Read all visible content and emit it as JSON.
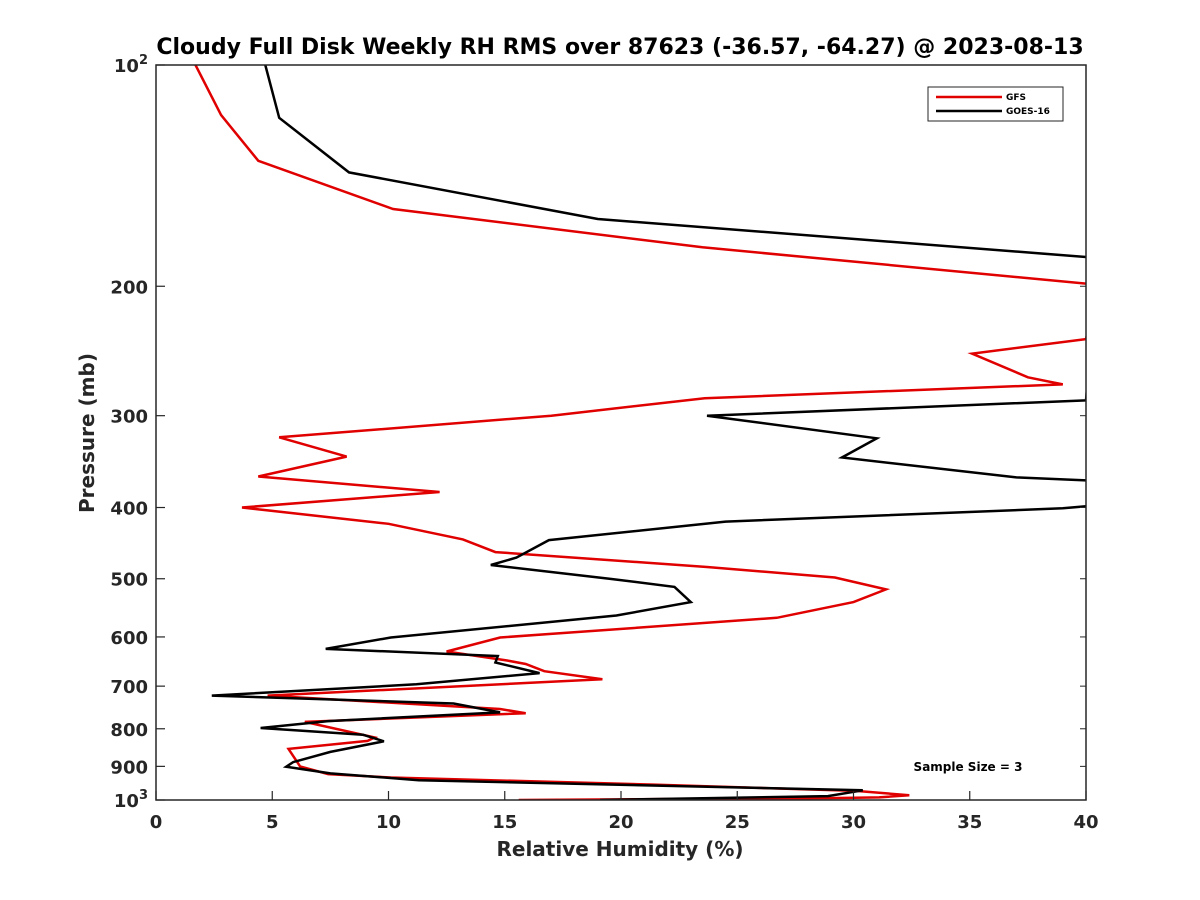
{
  "chart_data": {
    "type": "line",
    "title": "Cloudy Full Disk Weekly RH RMS over 87623 (-36.57, -64.27) @ 2023-08-13",
    "xlabel": "Relative Humidity (%)",
    "ylabel": "Pressure (mb)",
    "xlim": [
      0,
      40
    ],
    "ylim": [
      100,
      1000
    ],
    "yscale": "log",
    "y_reversed": true,
    "grid": false,
    "legend_position": "top-right",
    "x_ticks": [
      0,
      5,
      10,
      15,
      20,
      25,
      30,
      35,
      40
    ],
    "y_ticks": [
      {
        "value": 100,
        "base": "10",
        "exp": "2"
      },
      {
        "value": 200,
        "label": "200"
      },
      {
        "value": 300,
        "label": "300"
      },
      {
        "value": 400,
        "label": "400"
      },
      {
        "value": 500,
        "label": "500"
      },
      {
        "value": 600,
        "label": "600"
      },
      {
        "value": 700,
        "label": "700"
      },
      {
        "value": 800,
        "label": "800"
      },
      {
        "value": 900,
        "label": "900"
      },
      {
        "value": 1000,
        "base": "10",
        "exp": "3"
      }
    ],
    "annotation": "Sample Size = 3",
    "series": [
      {
        "name": "GFS",
        "color": "#e00000",
        "points": [
          [
            1.7,
            100
          ],
          [
            2.8,
            117
          ],
          [
            4.4,
            135
          ],
          [
            10.2,
            157
          ],
          [
            23.5,
            177
          ],
          [
            40.5,
            199
          ],
          [
            40.0,
            236
          ],
          [
            35.1,
            247
          ],
          [
            37.5,
            266
          ],
          [
            39.0,
            272
          ],
          [
            23.6,
            284
          ],
          [
            17.0,
            300
          ],
          [
            5.3,
            321
          ],
          [
            8.2,
            341
          ],
          [
            4.4,
            363
          ],
          [
            12.2,
            381
          ],
          [
            3.7,
            400
          ],
          [
            10.0,
            421
          ],
          [
            13.2,
            442
          ],
          [
            14.6,
            460
          ],
          [
            23.7,
            482
          ],
          [
            29.2,
            498
          ],
          [
            31.4,
            517
          ],
          [
            30.0,
            538
          ],
          [
            26.7,
            565
          ],
          [
            14.8,
            601
          ],
          [
            12.5,
            628
          ],
          [
            15.1,
            646
          ],
          [
            15.9,
            653
          ],
          [
            16.7,
            668
          ],
          [
            19.2,
            685
          ],
          [
            16.0,
            693
          ],
          [
            4.8,
            721
          ],
          [
            14.8,
            752
          ],
          [
            15.9,
            762
          ],
          [
            6.4,
            783
          ],
          [
            9.4,
            822
          ],
          [
            9.1,
            831
          ],
          [
            5.7,
            852
          ],
          [
            6.2,
            900
          ],
          [
            7.4,
            922
          ],
          [
            10.1,
            932
          ],
          [
            21.4,
            953
          ],
          [
            30.1,
            972
          ],
          [
            32.4,
            985
          ],
          [
            31.1,
            992
          ],
          [
            29.0,
            994
          ],
          [
            15.6,
            1000
          ]
        ]
      },
      {
        "name": "GOES-16",
        "color": "#000000",
        "points": [
          [
            4.7,
            100
          ],
          [
            5.3,
            118
          ],
          [
            8.3,
            140
          ],
          [
            19.0,
            162
          ],
          [
            40.5,
            183
          ],
          [
            40.0,
            286
          ],
          [
            23.7,
            300
          ],
          [
            31.0,
            322
          ],
          [
            29.5,
            342
          ],
          [
            37.0,
            364
          ],
          [
            40.5,
            368
          ],
          [
            40.2,
            398
          ],
          [
            39.0,
            401
          ],
          [
            24.5,
            418
          ],
          [
            16.9,
            443
          ],
          [
            15.5,
            468
          ],
          [
            14.4,
            479
          ],
          [
            19.5,
            500
          ],
          [
            22.3,
            513
          ],
          [
            23.0,
            538
          ],
          [
            19.8,
            561
          ],
          [
            10.1,
            601
          ],
          [
            7.3,
            623
          ],
          [
            14.7,
            637
          ],
          [
            14.6,
            650
          ],
          [
            16.5,
            672
          ],
          [
            11.2,
            696
          ],
          [
            2.4,
            721
          ],
          [
            12.8,
            739
          ],
          [
            14.8,
            760
          ],
          [
            7.4,
            781
          ],
          [
            4.5,
            798
          ],
          [
            8.9,
            815
          ],
          [
            9.8,
            832
          ],
          [
            7.5,
            860
          ],
          [
            5.9,
            888
          ],
          [
            5.6,
            901
          ],
          [
            7.5,
            920
          ],
          [
            11.3,
            940
          ],
          [
            30.4,
            970
          ],
          [
            28.9,
            988
          ],
          [
            19.1,
            1000
          ]
        ]
      }
    ]
  }
}
